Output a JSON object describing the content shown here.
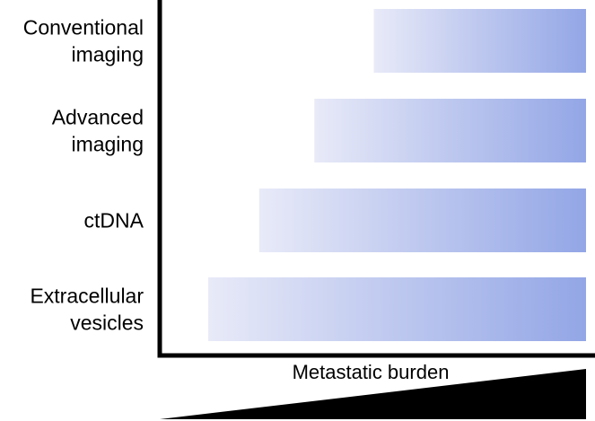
{
  "diagram": {
    "rows": [
      {
        "label_lines": [
          "Conventional",
          "imaging"
        ],
        "relative_detection_start": 0.5
      },
      {
        "label_lines": [
          "Advanced",
          "imaging"
        ],
        "relative_detection_start": 0.36
      },
      {
        "label_lines": [
          "ctDNA"
        ],
        "relative_detection_start": 0.23
      },
      {
        "label_lines": [
          "Extracellular",
          "vesicles"
        ],
        "relative_detection_start": 0.11
      }
    ],
    "x_axis_label": "Metastatic burden",
    "colors": {
      "bar_light": "#e8eaf8",
      "bar_dark": "#93a6e6",
      "axis": "#000000",
      "wedge": "#000000"
    }
  }
}
